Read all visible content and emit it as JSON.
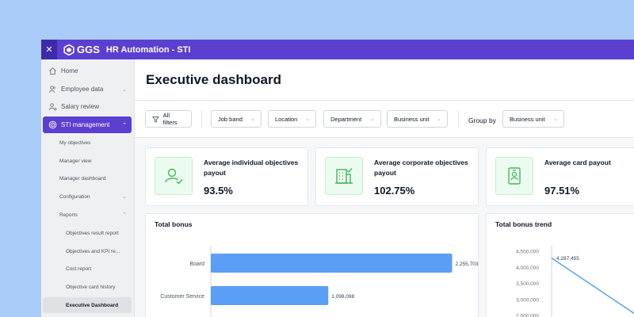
{
  "app": {
    "brand": "GGS",
    "title": "HR Automation - STI",
    "close_icon": "close-icon"
  },
  "sidebar": {
    "items": [
      {
        "label": "Home",
        "icon": "home-icon"
      },
      {
        "label": "Employee data",
        "icon": "users-icon",
        "chevron": true
      },
      {
        "label": "Salary review",
        "icon": "user-review-icon"
      },
      {
        "label": "STI management",
        "icon": "target-icon",
        "chevron": true,
        "active": true
      }
    ],
    "sub_items": [
      {
        "label": "My objectives"
      },
      {
        "label": "Manager view"
      },
      {
        "label": "Manager dashboard"
      },
      {
        "label": "Configuration",
        "chevron": "down"
      },
      {
        "label": "Reports",
        "chevron": "up"
      }
    ],
    "report_items": [
      {
        "label": "Objectives result report"
      },
      {
        "label": "Objectives and KPI re..."
      },
      {
        "label": "Cost report"
      },
      {
        "label": "Objective card history"
      },
      {
        "label": "Executive Dashboard",
        "selected": true
      }
    ]
  },
  "page": {
    "title": "Executive dashboard"
  },
  "filters": {
    "all_filters": "All filters",
    "dropdowns": [
      "Job band",
      "Location",
      "Department",
      "Business unit"
    ],
    "group_by_label": "Group by",
    "group_by_value": "Business unit"
  },
  "kpis": [
    {
      "title": "Average individual objectives payout",
      "value": "93.5%",
      "icon": "user-check-icon"
    },
    {
      "title": "Average corporate objectives payout",
      "value": "102.75%",
      "icon": "building-check-icon"
    },
    {
      "title": "Average card payout",
      "value": "97.51%",
      "icon": "id-card-icon"
    }
  ],
  "colors": {
    "brand": "#5b3fd1",
    "bar": "#5b9ef5",
    "kpi_icon": "#3fb861"
  },
  "chart_data": [
    {
      "type": "bar",
      "orientation": "horizontal",
      "title": "Total bonus",
      "categories": [
        "Board",
        "Customer Service"
      ],
      "values": [
        2255703,
        1098098
      ],
      "value_labels": [
        "2,255,703",
        "1,098,098"
      ],
      "xlim": [
        0,
        2800000
      ]
    },
    {
      "type": "line",
      "title": "Total bonus trend",
      "yticks": [
        "4,500,000",
        "4,000,000",
        "3,500,000",
        "3,000,000",
        "2,500,000"
      ],
      "ylim": [
        2500000,
        4500000
      ],
      "series": [
        {
          "values": [
            4287455,
            2500000
          ]
        }
      ],
      "point_labels": [
        "4,287,455"
      ]
    }
  ]
}
